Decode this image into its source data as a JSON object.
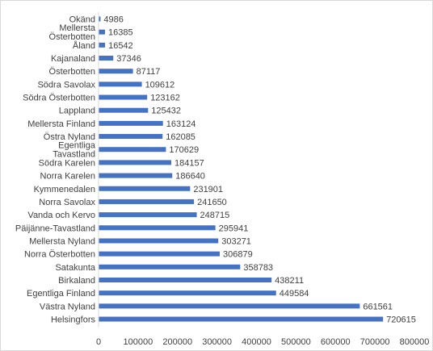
{
  "chart_data": {
    "type": "bar",
    "orientation": "horizontal",
    "title": "",
    "xlabel": "",
    "ylabel": "",
    "categories": [
      "Okänd",
      "Mellersta Österbotten",
      "Åland",
      "Kajanaland",
      "Österbotten",
      "Södra Savolax",
      "Södra Österbotten",
      "Lappland",
      "Mellersta Finland",
      "Östra Nyland",
      "Egentliga Tavastland",
      "Södra Karelen",
      "Norra Karelen",
      "Kymmenedalen",
      "Norra Savolax",
      "Vanda och Kervo",
      "Päijänne-Tavastland",
      "Mellersta Nyland",
      "Norra Österbotten",
      "Satakunta",
      "Birkaland",
      "Egentliga Finland",
      "Västra Nyland",
      "Helsingfors"
    ],
    "values": [
      4986,
      16385,
      16542,
      37346,
      87117,
      109612,
      123162,
      125432,
      163124,
      162085,
      170629,
      184157,
      186640,
      231901,
      241650,
      248715,
      295941,
      303271,
      306879,
      358783,
      438211,
      449584,
      661561,
      720615
    ],
    "xlim": [
      0,
      800000
    ],
    "xticks": [
      0,
      100000,
      200000,
      300000,
      400000,
      500000,
      600000,
      700000,
      800000
    ],
    "grid": false,
    "legend": "none",
    "bar_color": "#4472c4"
  }
}
